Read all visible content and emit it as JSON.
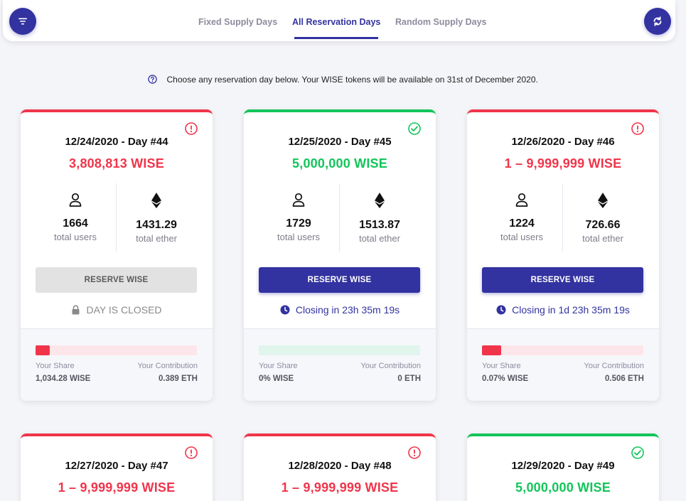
{
  "tabs": [
    {
      "label": "Fixed Supply Days",
      "active": false
    },
    {
      "label": "All Reservation Days",
      "active": true
    },
    {
      "label": "Random Supply Days",
      "active": false
    }
  ],
  "notice": "Choose any reservation day below. Your WISE tokens will be available on 31st of December 2020.",
  "colors": {
    "accent": "#3232a0",
    "danger": "#f0354b",
    "success": "#12c55a"
  },
  "labels": {
    "total_users": "total users",
    "total_ether": "total ether",
    "your_share": "Your Share",
    "your_contribution": "Your Contribution"
  },
  "cards": [
    {
      "title": "12/24/2020 - Day #44",
      "supply": "3,808,813 WISE",
      "status": "red",
      "users": "1664",
      "ether": "1431.29",
      "button": "RESERVE WISE",
      "button_enabled": false,
      "closing": "DAY IS CLOSED",
      "share_fraction": 0.09,
      "share": "1,034.28 WISE",
      "contribution": "0.389 ETH"
    },
    {
      "title": "12/25/2020 - Day #45",
      "supply": "5,000,000 WISE",
      "status": "green",
      "users": "1729",
      "ether": "1513.87",
      "button": "RESERVE WISE",
      "button_enabled": true,
      "closing": "Closing in 23h 35m 19s",
      "share_fraction": 0,
      "share": "0% WISE",
      "contribution": "0 ETH"
    },
    {
      "title": "12/26/2020 - Day #46",
      "supply": "1 – 9,999,999 WISE",
      "status": "red",
      "users": "1224",
      "ether": "726.66",
      "button": "RESERVE WISE",
      "button_enabled": true,
      "closing": "Closing in 1d 23h 35m 19s",
      "share_fraction": 0.12,
      "share": "0.07% WISE",
      "contribution": "0.506 ETH"
    },
    {
      "title": "12/27/2020 - Day #47",
      "supply": "1 – 9,999,999 WISE",
      "status": "red"
    },
    {
      "title": "12/28/2020 - Day #48",
      "supply": "1 – 9,999,999 WISE",
      "status": "red"
    },
    {
      "title": "12/29/2020 - Day #49",
      "supply": "5,000,000 WISE",
      "status": "green"
    }
  ]
}
